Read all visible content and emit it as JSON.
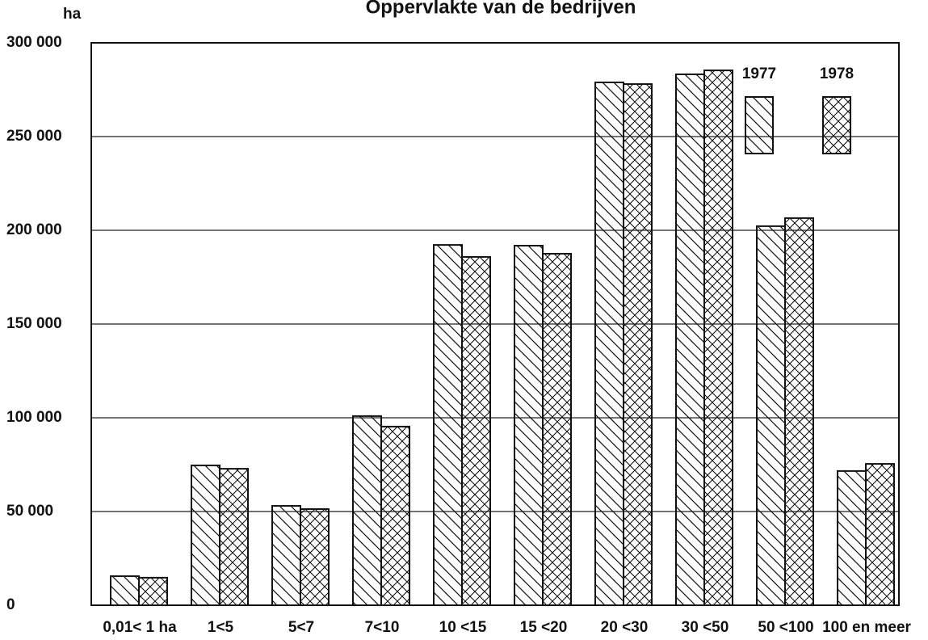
{
  "chart_data": {
    "type": "bar",
    "title": "Oppervlakte van de bedrijven",
    "y_label": "ha",
    "categories": [
      "0,01< 1 ha",
      "1<5",
      "5<7",
      "7<10",
      "10 <15",
      "15 <20",
      "20 <30",
      "30 <50",
      "50 <100",
      "100 en meer"
    ],
    "series": [
      {
        "name": "1977",
        "color": "#111111",
        "pattern": "diagonal",
        "values": [
          15500,
          74600,
          53000,
          100900,
          192200,
          191800,
          278900,
          283200,
          202200,
          71600
        ]
      },
      {
        "name": "1978",
        "color": "#111111",
        "pattern": "crosshatch",
        "values": [
          14700,
          72800,
          51300,
          95300,
          185800,
          187500,
          278000,
          285300,
          206500,
          75400
        ]
      }
    ],
    "ylim": [
      0,
      300000
    ],
    "yticks": [
      0,
      {
        "value": 50000,
        "label": "50 000"
      },
      {
        "value": 100000,
        "label": "100 000"
      },
      {
        "value": 150000,
        "label": "150 000"
      },
      {
        "value": 200000,
        "label": "200 000"
      },
      {
        "value": 250000,
        "label": "250 000"
      },
      {
        "value": 300000,
        "label": "300 000"
      }
    ],
    "grid": true,
    "legend": "top-right"
  }
}
